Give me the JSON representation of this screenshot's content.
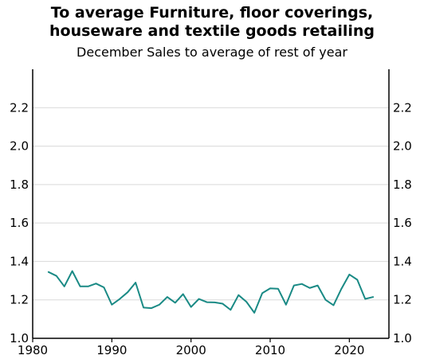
{
  "chart_data": {
    "type": "line",
    "title_lines": [
      "To average Furniture, floor coverings,",
      "houseware and textile goods retailing"
    ],
    "subtitle": "December Sales to average of rest of year",
    "xlim": [
      1980,
      2025
    ],
    "ylim": [
      1.0,
      2.4
    ],
    "x_ticks": [
      1980,
      1990,
      2000,
      2010,
      2020
    ],
    "y_ticks": [
      1.0,
      1.2,
      1.4,
      1.6,
      1.8,
      2.0,
      2.2
    ],
    "y_tick_labels": [
      "1.0",
      "1.2",
      "1.4",
      "1.6",
      "1.8",
      "2.0",
      "2.2"
    ],
    "grid": true,
    "series": [
      {
        "color": "#1a8a85",
        "x": [
          1982,
          1983,
          1984,
          1985,
          1986,
          1987,
          1988,
          1989,
          1990,
          1991,
          1992,
          1993,
          1994,
          1995,
          1996,
          1997,
          1998,
          1999,
          2000,
          2001,
          2002,
          2003,
          2004,
          2005,
          2006,
          2007,
          2008,
          2009,
          2010,
          2011,
          2012,
          2013,
          2014,
          2015,
          2016,
          2017,
          2018,
          2019,
          2020,
          2021,
          2022,
          2023
        ],
        "y": [
          1.345,
          1.325,
          1.27,
          1.35,
          1.27,
          1.27,
          1.285,
          1.265,
          1.175,
          1.205,
          1.24,
          1.29,
          1.16,
          1.157,
          1.175,
          1.215,
          1.185,
          1.23,
          1.163,
          1.205,
          1.188,
          1.187,
          1.18,
          1.148,
          1.225,
          1.19,
          1.133,
          1.235,
          1.26,
          1.258,
          1.175,
          1.275,
          1.283,
          1.262,
          1.275,
          1.2,
          1.172,
          1.258,
          1.332,
          1.305,
          1.205,
          1.215
        ]
      }
    ]
  }
}
